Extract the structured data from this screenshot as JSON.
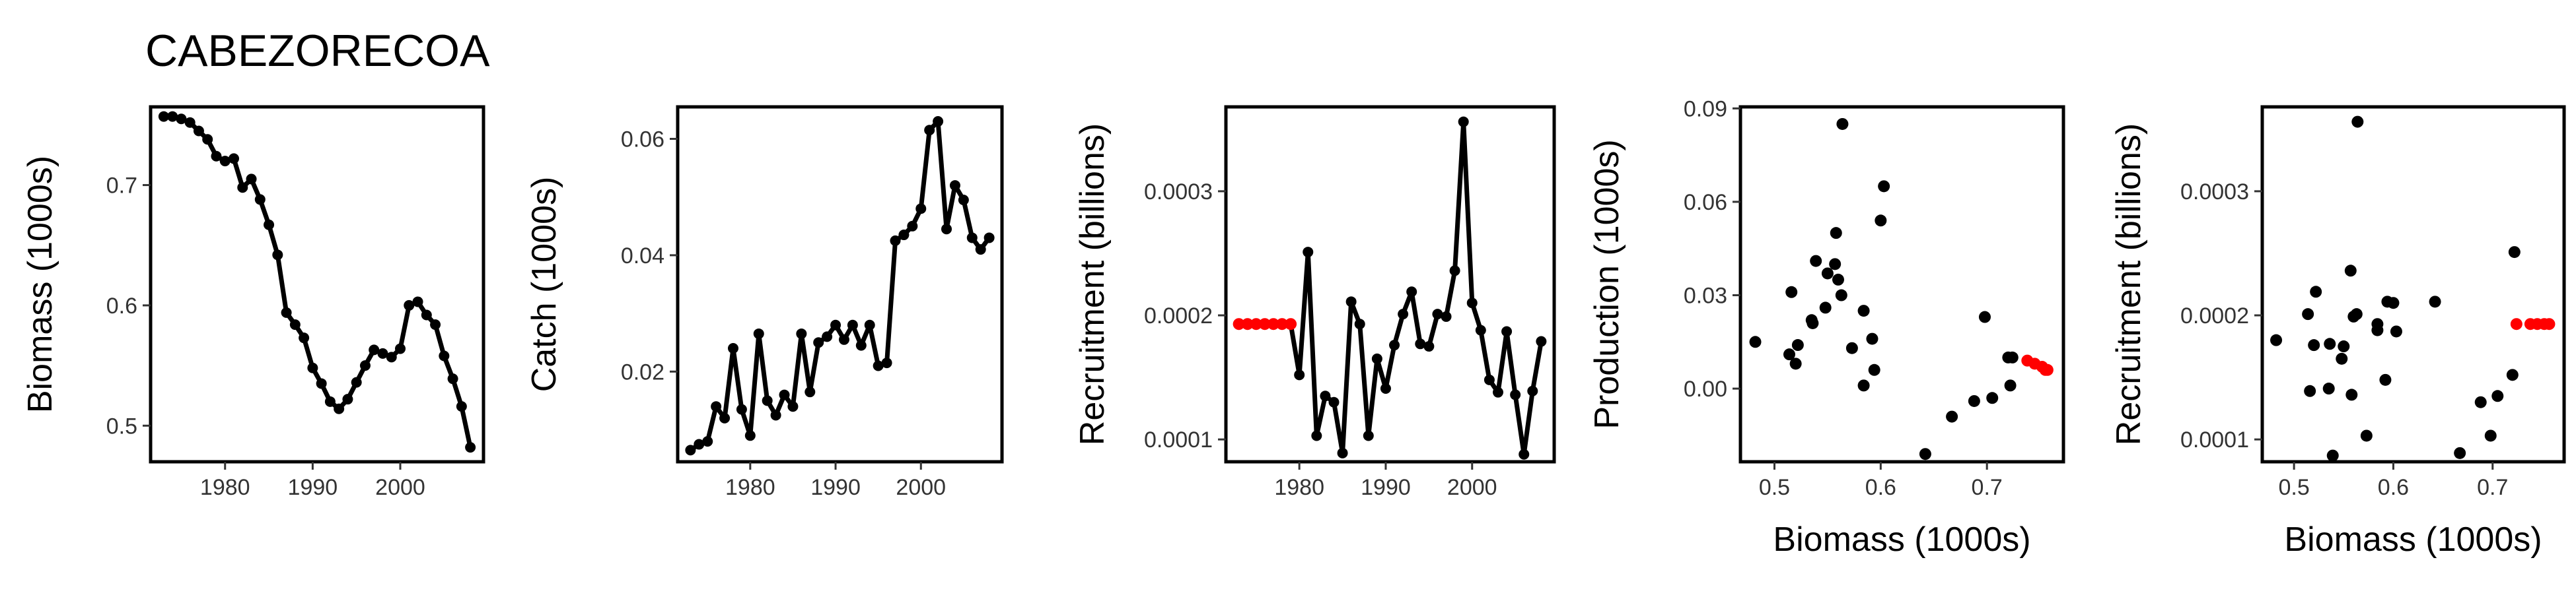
{
  "figure_title": "CABEZORECOA",
  "colors": {
    "series": "#000000",
    "highlight": "#ff0000",
    "axis": "#000000",
    "tick_text": "#333333"
  },
  "chart_data": [
    {
      "id": "biomass",
      "type": "line",
      "xlabel": "",
      "ylabel": "Biomass (1000s)",
      "xlim": [
        1971.5,
        2009.5
      ],
      "ylim": [
        0.47,
        0.765
      ],
      "xticks": [
        1980,
        1990,
        2000
      ],
      "yticks": [
        0.5,
        0.6,
        0.7
      ],
      "ytick_labels": [
        "0.5",
        "0.6",
        "0.7"
      ],
      "grid": false,
      "series": [
        {
          "x": [
            1973,
            1974,
            1975,
            1976,
            1977,
            1978,
            1979,
            1980,
            1981,
            1982,
            1983,
            1984,
            1985,
            1986,
            1987,
            1988,
            1989,
            1990,
            1991,
            1992,
            1993,
            1994,
            1995,
            1996,
            1997,
            1998,
            1999,
            2000,
            2001,
            2002,
            2003,
            2004,
            2005,
            2006,
            2007,
            2008
          ],
          "y": [
            0.757,
            0.757,
            0.755,
            0.752,
            0.745,
            0.738,
            0.724,
            0.72,
            0.722,
            0.698,
            0.705,
            0.688,
            0.667,
            0.642,
            0.594,
            0.584,
            0.573,
            0.548,
            0.535,
            0.52,
            0.514,
            0.522,
            0.536,
            0.55,
            0.563,
            0.56,
            0.557,
            0.564,
            0.6,
            0.603,
            0.592,
            0.584,
            0.558,
            0.539,
            0.516,
            0.482
          ]
        }
      ]
    },
    {
      "id": "catch",
      "type": "line",
      "xlabel": "",
      "ylabel": "Catch (1000s)",
      "xlim": [
        1971.5,
        2009.5
      ],
      "ylim": [
        0.0045,
        0.0655
      ],
      "xticks": [
        1980,
        1990,
        2000
      ],
      "yticks": [
        0.02,
        0.04,
        0.06
      ],
      "ytick_labels": [
        "0.02",
        "0.04",
        "0.06"
      ],
      "grid": false,
      "series": [
        {
          "x": [
            1973,
            1974,
            1975,
            1976,
            1977,
            1978,
            1979,
            1980,
            1981,
            1982,
            1983,
            1984,
            1985,
            1986,
            1987,
            1988,
            1989,
            1990,
            1991,
            1992,
            1993,
            1994,
            1995,
            1996,
            1997,
            1998,
            1999,
            2000,
            2001,
            2002,
            2003,
            2004,
            2005,
            2006,
            2007,
            2008
          ],
          "y": [
            0.0065,
            0.0075,
            0.008,
            0.014,
            0.012,
            0.024,
            0.0135,
            0.009,
            0.0265,
            0.015,
            0.0125,
            0.016,
            0.014,
            0.0265,
            0.0165,
            0.025,
            0.026,
            0.028,
            0.0255,
            0.028,
            0.0245,
            0.028,
            0.021,
            0.0215,
            0.0425,
            0.0435,
            0.045,
            0.048,
            0.0615,
            0.063,
            0.0445,
            0.052,
            0.0495,
            0.043,
            0.041,
            0.043
          ]
        }
      ]
    },
    {
      "id": "recruitment-time",
      "type": "line",
      "xlabel": "",
      "ylabel": "Recruitment (billions)",
      "xlim": [
        1971.5,
        2009.5
      ],
      "ylim": [
        8.2e-05,
        0.000368
      ],
      "xticks": [
        1980,
        1990,
        2000
      ],
      "yticks": [
        0.0001,
        0.0002,
        0.0003
      ],
      "ytick_labels": [
        "0.0001",
        "0.0002",
        "0.0003"
      ],
      "grid": false,
      "highlight_points": {
        "x": [
          1973,
          1974,
          1975,
          1976,
          1977,
          1978,
          1979
        ],
        "y": [
          0.000193,
          0.000193,
          0.000193,
          0.000193,
          0.000193,
          0.000193,
          0.000193
        ]
      },
      "series": [
        {
          "x": [
            1979,
            1980,
            1981,
            1982,
            1983,
            1984,
            1985,
            1986,
            1987,
            1988,
            1989,
            1990,
            1991,
            1992,
            1993,
            1994,
            1995,
            1996,
            1997,
            1998,
            1999,
            2000,
            2001,
            2002,
            2003,
            2004,
            2005,
            2006,
            2007,
            2008
          ],
          "y": [
            0.000193,
            0.000152,
            0.000251,
            0.000103,
            0.000135,
            0.00013,
            8.9e-05,
            0.000211,
            0.000193,
            0.000103,
            0.000165,
            0.000141,
            0.000176,
            0.000201,
            0.000219,
            0.000177,
            0.000175,
            0.000201,
            0.000199,
            0.000236,
            0.000356,
            0.00021,
            0.000188,
            0.000148,
            0.000138,
            0.000187,
            0.000136,
            8.8e-05,
            0.000139,
            0.000179
          ]
        }
      ]
    },
    {
      "id": "production-biomass",
      "type": "scatter",
      "xlabel": "Biomass (1000s)",
      "ylabel": "Production (1000s)",
      "xlim": [
        0.468,
        0.772
      ],
      "ylim": [
        -0.0235,
        0.0905
      ],
      "xticks": [
        0.5,
        0.6,
        0.7
      ],
      "xtick_labels": [
        "0.5",
        "0.6",
        "0.7"
      ],
      "yticks": [
        0,
        0.03,
        0.06,
        0.09
      ],
      "ytick_labels": [
        "0.00",
        "0.03",
        "0.06",
        "0.09"
      ],
      "grid": false,
      "points": {
        "x": [
          0.482,
          0.516,
          0.539,
          0.558,
          0.584,
          0.592,
          0.603,
          0.6,
          0.564,
          0.557,
          0.56,
          0.563,
          0.55,
          0.536,
          0.522,
          0.514,
          0.52,
          0.535,
          0.548,
          0.573,
          0.584,
          0.594,
          0.642,
          0.667,
          0.688,
          0.705,
          0.698,
          0.722,
          0.72,
          0.724
        ],
        "y": [
          0.015,
          0.031,
          0.041,
          0.05,
          0.025,
          0.016,
          0.065,
          0.054,
          0.085,
          0.04,
          0.035,
          0.03,
          0.037,
          0.021,
          0.014,
          0.011,
          0.008,
          0.022,
          0.026,
          0.013,
          0.001,
          0.006,
          -0.021,
          -0.009,
          -0.004,
          -0.003,
          0.023,
          0.001,
          0.01,
          0.01
        ]
      },
      "highlight_points": {
        "x": [
          0.738,
          0.745,
          0.752,
          0.755,
          0.757
        ],
        "y": [
          0.009,
          0.008,
          0.007,
          0.006,
          0.006
        ]
      }
    },
    {
      "id": "recruitment-biomass",
      "type": "scatter",
      "xlabel": "Biomass (1000s)",
      "ylabel": "Recruitment (billions)",
      "xlim": [
        0.468,
        0.772
      ],
      "ylim": [
        8.2e-05,
        0.000368
      ],
      "xticks": [
        0.5,
        0.6,
        0.7
      ],
      "xtick_labels": [
        "0.5",
        "0.6",
        "0.7"
      ],
      "yticks": [
        0.0001,
        0.0002,
        0.0003
      ],
      "ytick_labels": [
        "0.0001",
        "0.0002",
        "0.0003"
      ],
      "grid": false,
      "points": {
        "x": [
          0.482,
          0.516,
          0.539,
          0.558,
          0.584,
          0.592,
          0.603,
          0.6,
          0.564,
          0.557,
          0.56,
          0.563,
          0.55,
          0.536,
          0.522,
          0.514,
          0.52,
          0.535,
          0.548,
          0.573,
          0.584,
          0.594,
          0.642,
          0.667,
          0.688,
          0.698,
          0.705,
          0.72,
          0.722
        ],
        "y": [
          0.00018,
          0.000139,
          8.7e-05,
          0.000136,
          0.000188,
          0.000148,
          0.000187,
          0.00021,
          0.000356,
          0.000236,
          0.000199,
          0.000201,
          0.000175,
          0.000177,
          0.000219,
          0.000201,
          0.000176,
          0.000141,
          0.000165,
          0.000103,
          0.000193,
          0.000211,
          0.000211,
          8.9e-05,
          0.00013,
          0.000103,
          0.000135,
          0.000152,
          0.000251
        ]
      },
      "highlight_points": {
        "x": [
          0.724,
          0.738,
          0.745,
          0.752,
          0.757
        ],
        "y": [
          0.000193,
          0.000193,
          0.000193,
          0.000193,
          0.000193
        ]
      }
    }
  ]
}
